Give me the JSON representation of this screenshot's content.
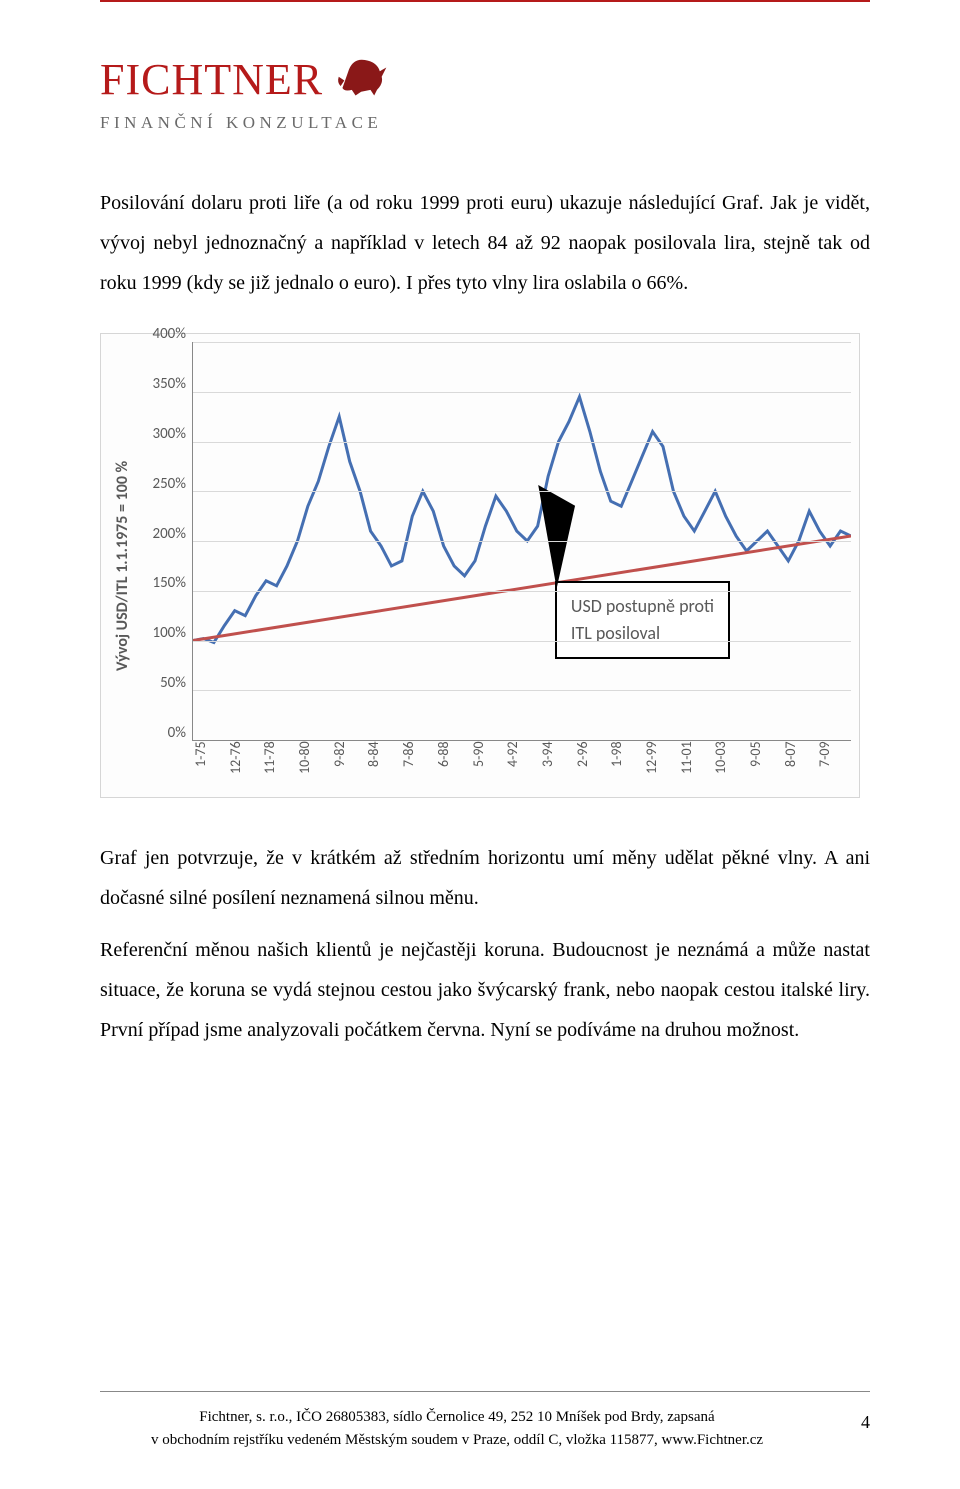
{
  "brand": {
    "name": "FICHTNER",
    "tagline": "FINANČNÍ KONZULTACE",
    "accent_color": "#b51a1a",
    "sub_color": "#6a6a6a"
  },
  "paragraphs": {
    "p1": "Posilování dolaru proti liře (a od roku 1999 proti euru) ukazuje následující Graf. Jak je vidět, vývoj nebyl jednoznačný a například v letech 84 až 92 naopak posilovala lira, stejně tak od roku 1999 (kdy se již jednalo o euro). I přes tyto vlny lira oslabila o 66%.",
    "p2": "Graf jen potvrzuje, že v krátkém až středním horizontu umí měny udělat pěkné vlny. A ani dočasné silné posílení neznamená silnou měnu.",
    "p3": "Referenční měnou našich klientů je nejčastěji koruna. Budoucnost je neznámá a může nastat situace, že koruna se vydá stejnou cestou jako švýcarský frank, nebo naopak cestou italské liry. První případ jsme analyzovali počátkem června. Nyní se podíváme na druhou možnost."
  },
  "chart": {
    "type": "line",
    "ylabel": "Vývoj USD/ITL 1.1.1975 = 100 %",
    "ylim": [
      0,
      400
    ],
    "ytick_step": 50,
    "yticks": [
      "400%",
      "350%",
      "300%",
      "250%",
      "200%",
      "150%",
      "100%",
      "50%",
      "0%"
    ],
    "xticks": [
      "1-75",
      "12-76",
      "11-78",
      "10-80",
      "9-82",
      "8-84",
      "7-86",
      "6-88",
      "5-90",
      "4-92",
      "3-94",
      "2-96",
      "1-98",
      "12-99",
      "11-01",
      "10-03",
      "9-05",
      "8-07",
      "7-09"
    ],
    "line_color": "#456fb2",
    "trend_color": "#c0504d",
    "grid_color": "#d9d9d9",
    "axis_color": "#888888",
    "text_color": "#595959",
    "background_color": "#fdfdfd",
    "callout_text1": "USD postupně proti",
    "callout_text2": "ITL posiloval",
    "callout_border": "#000000",
    "series": [
      100,
      102,
      98,
      115,
      130,
      125,
      145,
      160,
      155,
      175,
      200,
      235,
      260,
      295,
      325,
      280,
      250,
      210,
      195,
      175,
      180,
      225,
      250,
      230,
      195,
      175,
      165,
      180,
      215,
      245,
      230,
      210,
      200,
      215,
      265,
      300,
      320,
      345,
      310,
      270,
      240,
      235,
      260,
      285,
      310,
      295,
      250,
      225,
      210,
      230,
      250,
      225,
      205,
      190,
      200,
      210,
      195,
      180,
      200,
      230,
      210,
      195,
      210,
      205
    ],
    "trend": {
      "y_left_pct": 100,
      "y_right_pct": 205
    }
  },
  "footer": {
    "line1": "Fichtner, s. r.o., IČO 26805383, sídlo Černolice 49, 252 10 Mníšek pod Brdy, zapsaná",
    "line2": "v obchodním rejstříku vedeném Městským soudem v Praze, oddíl C, vložka 115877, www.Fichtner.cz",
    "page": "4"
  }
}
